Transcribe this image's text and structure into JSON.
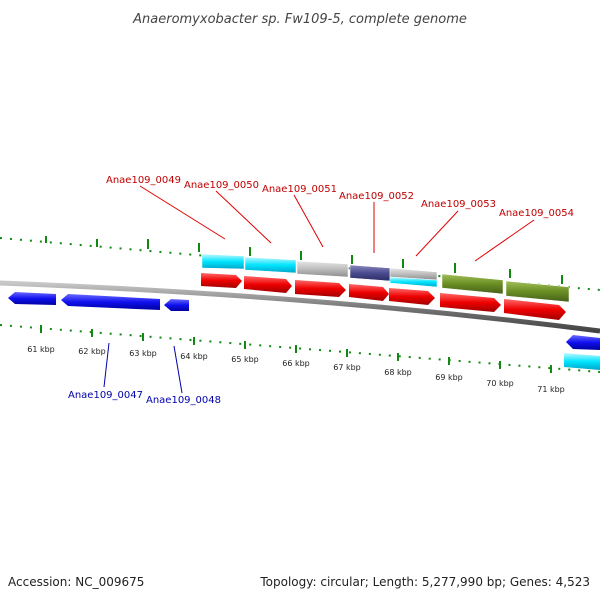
{
  "title": "Anaeromyxobacter sp. Fw109-5, complete genome",
  "footer": {
    "accession": "Accession: NC_009675",
    "topology": "Topology: circular; Length: 5,277,990 bp; Genes: 4,523"
  },
  "scale": {
    "unit_labels": [
      "61 kbp",
      "62 kbp",
      "63 kbp",
      "64 kbp",
      "65 kbp",
      "66 kbp",
      "67 kbp",
      "68 kbp",
      "69 kbp",
      "70 kbp",
      "71 kbp"
    ]
  },
  "genes": {
    "forward": [
      "Anae109_0049",
      "Anae109_0050",
      "Anae109_0051",
      "Anae109_0052",
      "Anae109_0053",
      "Anae109_0054"
    ],
    "reverse": [
      "Anae109_0047",
      "Anae109_0048"
    ]
  },
  "colors": {
    "forward_gene": "#ff0000",
    "reverse_gene": "#0000ee",
    "backbone": "#888888",
    "ticks": "#118811",
    "cyan_feature": "#00e5ff",
    "grey_feature": "#b8b8b8",
    "purple_feature": "#55559a",
    "olive_feature": "#6b8e23"
  }
}
